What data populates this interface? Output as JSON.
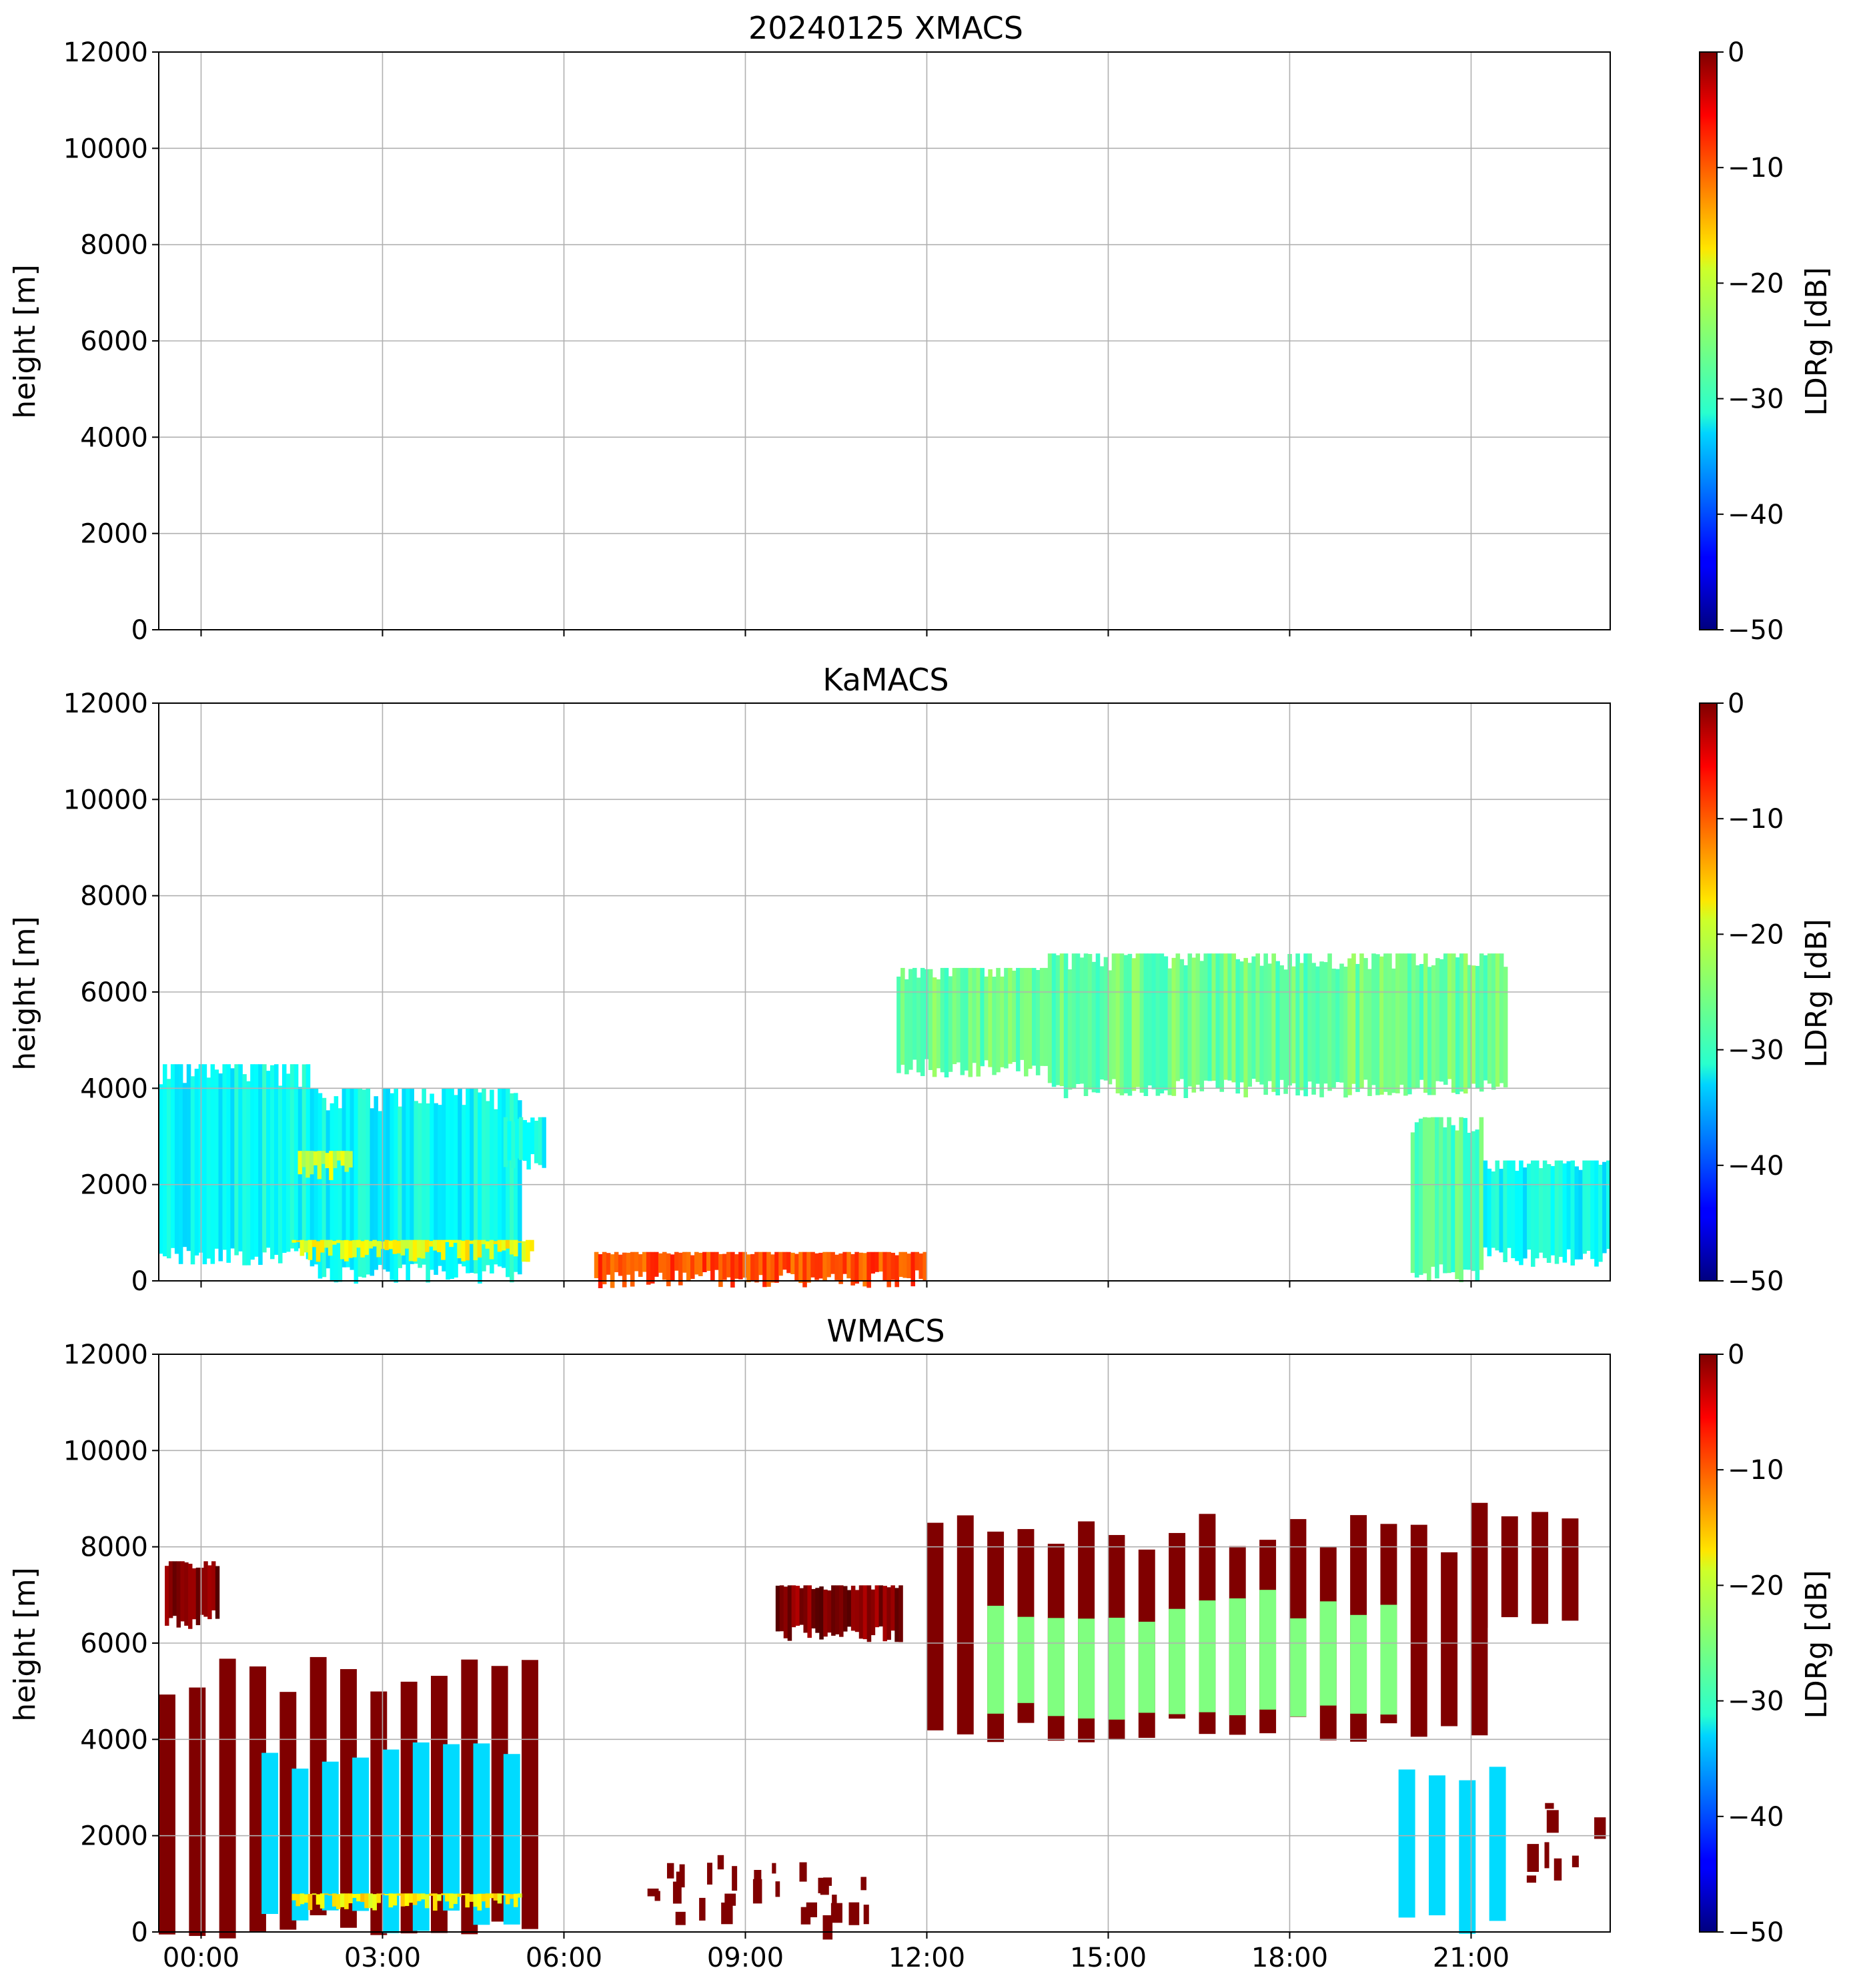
{
  "chart_data": [
    {
      "type": "heatmap",
      "title": "20240125 XMACS",
      "ylabel": "height [m]",
      "ylim": [
        0,
        12000
      ],
      "yticks": [
        "0",
        "2000",
        "4000",
        "6000",
        "8000",
        "10000",
        "12000"
      ],
      "xlim_hours": [
        -0.7,
        23.3
      ],
      "xtick_hours": [
        0,
        3,
        6,
        9,
        12,
        15,
        18,
        21
      ],
      "xtick_labels": [],
      "colorbar": {
        "label": "LDRg [dB]",
        "range": [
          -50,
          0
        ],
        "ticks": [
          "0",
          "−10",
          "−20",
          "−30",
          "−40",
          "−50"
        ],
        "colormap": "jet"
      },
      "regions": []
    },
    {
      "type": "heatmap",
      "title": "KaMACS",
      "ylabel": "height [m]",
      "ylim": [
        0,
        12000
      ],
      "yticks": [
        "0",
        "2000",
        "4000",
        "6000",
        "8000",
        "10000",
        "12000"
      ],
      "xlim_hours": [
        -0.7,
        23.3
      ],
      "xtick_hours": [
        0,
        3,
        6,
        9,
        12,
        15,
        18,
        21
      ],
      "xtick_labels": [],
      "colorbar": {
        "label": "LDRg [dB]",
        "range": [
          -50,
          0
        ],
        "ticks": [
          "0",
          "−10",
          "−20",
          "−30",
          "−40",
          "−50"
        ],
        "colormap": "jet"
      },
      "regions": [
        {
          "t_start": -0.7,
          "t_end": 1.8,
          "h_bottom": 500,
          "h_top": 4500,
          "ldr": -31
        },
        {
          "t_start": 1.8,
          "t_end": 5.3,
          "h_bottom": 150,
          "h_top": 4000,
          "ldr": -31
        },
        {
          "t_start": 1.6,
          "t_end": 2.5,
          "h_bottom": 2300,
          "h_top": 2700,
          "ldr": -21
        },
        {
          "t_start": 1.5,
          "t_end": 5.5,
          "h_bottom": 600,
          "h_top": 850,
          "ldr": -19
        },
        {
          "t_start": 5.0,
          "t_end": 5.7,
          "h_bottom": 2500,
          "h_top": 3400,
          "ldr": -31
        },
        {
          "t_start": 6.5,
          "t_end": 12.0,
          "h_bottom": 50,
          "h_top": 600,
          "ldr": -10
        },
        {
          "t_start": 11.5,
          "t_end": 14.0,
          "h_bottom": 4400,
          "h_top": 6500,
          "ldr": -26
        },
        {
          "t_start": 14.0,
          "t_end": 21.6,
          "h_bottom": 4000,
          "h_top": 6800,
          "ldr": -26
        },
        {
          "t_start": 20.0,
          "t_end": 21.2,
          "h_bottom": 150,
          "h_top": 3400,
          "ldr": -27
        },
        {
          "t_start": 21.2,
          "t_end": 23.3,
          "h_bottom": 500,
          "h_top": 2500,
          "ldr": -31
        }
      ]
    },
    {
      "type": "heatmap",
      "title": "WMACS",
      "ylabel": "height [m]",
      "ylim": [
        0,
        12000
      ],
      "yticks": [
        "0",
        "2000",
        "4000",
        "6000",
        "8000",
        "10000",
        "12000"
      ],
      "xlim_hours": [
        -0.7,
        23.3
      ],
      "xtick_hours": [
        0,
        3,
        6,
        9,
        12,
        15,
        18,
        21
      ],
      "xtick_labels": [
        "00:00",
        "03:00",
        "06:00",
        "09:00",
        "12:00",
        "15:00",
        "18:00",
        "21:00"
      ],
      "colorbar": {
        "label": "LDRg [dB]",
        "range": [
          -50,
          0
        ],
        "ticks": [
          "0",
          "−10",
          "−20",
          "−30",
          "−40",
          "−50"
        ],
        "colormap": "jet"
      },
      "regions": [
        {
          "t_start": -0.7,
          "t_end": 5.5,
          "h_bottom": 100,
          "h_top": 5300,
          "ldr": 0,
          "striped": true,
          "period": 0.5
        },
        {
          "t_start": -0.6,
          "t_end": 0.3,
          "h_bottom": 6500,
          "h_top": 7700,
          "ldr": 0
        },
        {
          "t_start": 1.0,
          "t_end": 5.2,
          "h_bottom": 200,
          "h_top": 3600,
          "ldr": -33,
          "striped": true,
          "period": 0.5
        },
        {
          "t_start": 1.5,
          "t_end": 5.3,
          "h_bottom": 650,
          "h_top": 800,
          "ldr": -18
        },
        {
          "t_start": 9.5,
          "t_end": 11.6,
          "h_bottom": 6200,
          "h_top": 7200,
          "ldr": 0
        },
        {
          "t_start": 6.5,
          "t_end": 11.0,
          "h_bottom": 300,
          "h_top": 1600,
          "ldr": 0,
          "sparse": true
        },
        {
          "t_start": 12.0,
          "t_end": 21.2,
          "h_bottom": 4200,
          "h_top": 8300,
          "ldr": 0,
          "striped": true,
          "period": 0.5
        },
        {
          "t_start": 13.0,
          "t_end": 20.0,
          "h_bottom": 4600,
          "h_top": 6800,
          "ldr": -25,
          "striped": true,
          "period": 0.5
        },
        {
          "t_start": 21.0,
          "t_end": 23.0,
          "h_bottom": 6500,
          "h_top": 8900,
          "ldr": 0,
          "striped": true,
          "period": 0.5
        },
        {
          "t_start": 19.8,
          "t_end": 21.8,
          "h_bottom": 150,
          "h_top": 3500,
          "ldr": -33,
          "striped": true,
          "period": 0.5
        },
        {
          "t_start": 21.8,
          "t_end": 23.1,
          "h_bottom": 400,
          "h_top": 2700,
          "ldr": 0,
          "sparse": true
        }
      ]
    }
  ]
}
